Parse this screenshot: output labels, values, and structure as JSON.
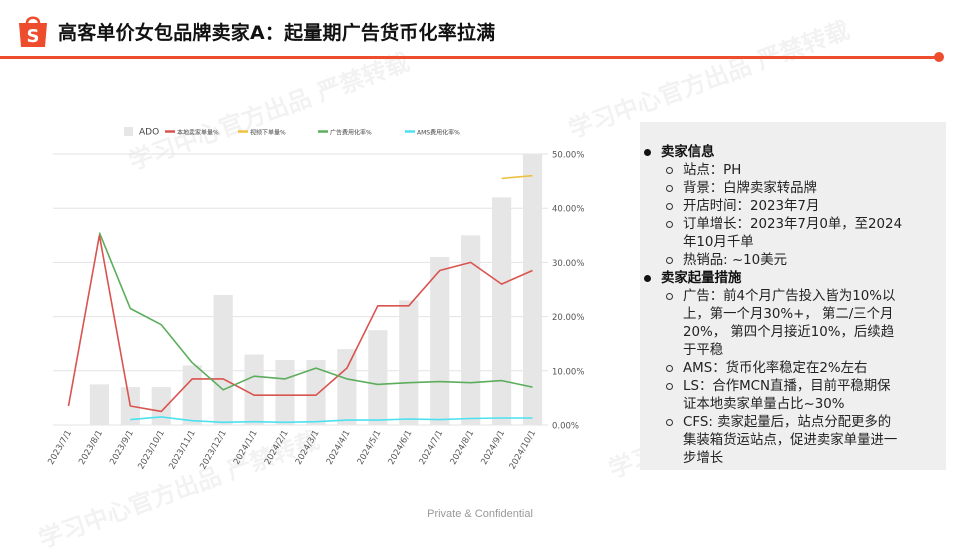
{
  "slide": {
    "title": "高客单价女包品牌卖家A：起量期广告货币化率拉满",
    "footer": "Private & Confidential",
    "watermark": "学习中心官方出品 严禁转载",
    "accent_color": "#ee4d2d",
    "logo_icon": "shopee-bag-icon"
  },
  "panel": {
    "sections": [
      {
        "heading": "卖家信息",
        "items": [
          [
            "站点：PH"
          ],
          [
            "背景：白牌卖家转品牌"
          ],
          [
            "开店时间：2023年7月"
          ],
          [
            "订单增长：2023年7月0单，至2024",
            "年10月千单"
          ],
          [
            "热销品: ~10美元"
          ]
        ]
      },
      {
        "heading": "卖家起量措施",
        "items": [
          [
            "广告：前4个月广告投入皆为10%以",
            "上，第一个月30%+， 第二/三个月",
            "20%， 第四个月接近10%，后续趋",
            "于平稳"
          ],
          [
            "AMS：货币化率稳定在2%左右"
          ],
          [
            "LS：合作MCN直播，目前平稳期保",
            "证本地卖家单量占比~30%"
          ],
          [
            "CFS: 卖家起量后，站点分配更多的",
            "集装箱货运站点，促进卖家单量进一",
            "步增长"
          ]
        ]
      }
    ]
  },
  "chart_data": {
    "type": "bar",
    "categories": [
      "2023/7/1",
      "2023/8/1",
      "2023/9/1",
      "2023/10/1",
      "2023/11/1",
      "2023/12/1",
      "2024/1/1",
      "2024/2/1",
      "2024/3/1",
      "2024/4/1",
      "2024/5/1",
      "2024/6/1",
      "2024/7/1",
      "2024/8/1",
      "2024/9/1",
      "2024/10/1"
    ],
    "bars": {
      "name": "ADO",
      "color": "#e6e6e6",
      "values": [
        0,
        7.5,
        7,
        7,
        11,
        24,
        13,
        12,
        12,
        14,
        17.5,
        23,
        31,
        35,
        42,
        50
      ]
    },
    "lines": [
      {
        "name": "本地卖家单量%",
        "color": "#d9534f",
        "values": [
          3.5,
          35,
          3.5,
          2.5,
          8.5,
          8.5,
          5.5,
          5.5,
          5.5,
          10.5,
          22,
          22,
          28.5,
          30,
          26,
          28.5
        ]
      },
      {
        "name": "视频下单量%",
        "color": "#f0c040",
        "values": [
          null,
          null,
          null,
          null,
          null,
          null,
          null,
          null,
          null,
          null,
          null,
          null,
          null,
          null,
          45.5,
          46
        ]
      },
      {
        "name": "广告费用化率%",
        "color": "#5cad5c",
        "values": [
          null,
          35.5,
          21.5,
          18.5,
          11.5,
          6.5,
          9,
          8.5,
          10.5,
          8.5,
          7.5,
          7.8,
          8,
          7.8,
          8.2,
          7
        ]
      },
      {
        "name": "AMS费用化率%",
        "color": "#4de1f0",
        "values": [
          null,
          null,
          1,
          1.5,
          0.8,
          0.5,
          0.6,
          0.5,
          0.6,
          0.9,
          0.9,
          1.1,
          1,
          1.2,
          1.3,
          1.3
        ]
      }
    ],
    "y_right_ticks": [
      "0.00%",
      "10.00%",
      "20.00%",
      "30.00%",
      "40.00%",
      "50.00%"
    ],
    "ylim": [
      0,
      50
    ],
    "legend_position": "top"
  }
}
